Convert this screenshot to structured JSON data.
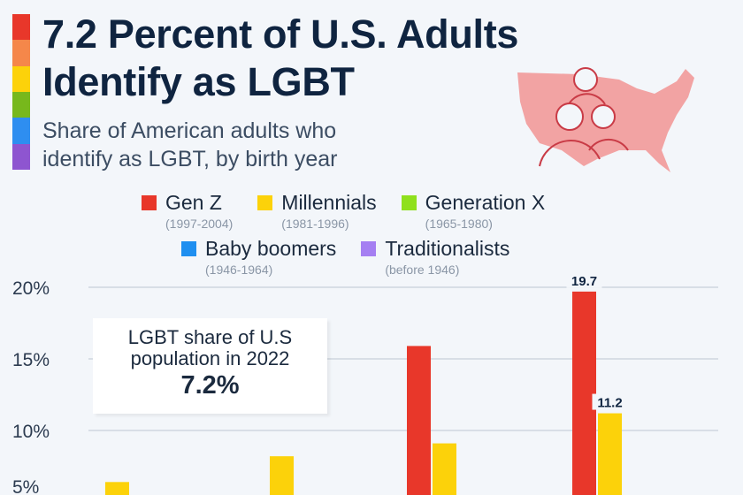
{
  "header": {
    "title_line1": "7.2 Percent of U.S. Adults",
    "title_line2": "Identify as LGBT",
    "subtitle_line1": "Share of American adults who",
    "subtitle_line2": "identify as LGBT, by birth year",
    "rainbow_colors": [
      "#e8372a",
      "#f5874a",
      "#fcd20a",
      "#77b81c",
      "#2e8ef0",
      "#8e55d0"
    ],
    "map_icon": "us-map-people-icon"
  },
  "callout": {
    "line1": "LGBT share of U.S",
    "line2": "population in 2022",
    "value": "7.2%"
  },
  "chart_data": {
    "type": "bar",
    "title": "7.2 Percent of U.S. Adults Identify as LGBT",
    "ylim": [
      0,
      20
    ],
    "yticks": [
      "20%",
      "15%",
      "10%",
      "5%"
    ],
    "grid": true,
    "legend_placement": "top",
    "series": [
      {
        "name": "Gen Z",
        "years": "(1997-2004)",
        "color": "#e8372a",
        "values": [
          null,
          null,
          15.9,
          19.7
        ]
      },
      {
        "name": "Millennials",
        "years": "(1981-1996)",
        "color": "#fcd20a",
        "values": [
          6.4,
          8.2,
          9.1,
          11.2
        ]
      },
      {
        "name": "Generation X",
        "years": "(1965-1980)",
        "color": "#8fe01c",
        "values": [
          null,
          null,
          null,
          null
        ]
      },
      {
        "name": "Baby boomers",
        "years": "(1946-1964)",
        "color": "#1f8ff0",
        "values": [
          null,
          null,
          null,
          null
        ]
      },
      {
        "name": "Traditionalists",
        "years": "(before 1946)",
        "color": "#a57ff2",
        "values": [
          null,
          null,
          null,
          null
        ]
      }
    ],
    "data_labels": [
      {
        "series": 0,
        "group": 3,
        "text": "19.7"
      },
      {
        "series": 1,
        "group": 3,
        "text": "11.2"
      }
    ]
  }
}
